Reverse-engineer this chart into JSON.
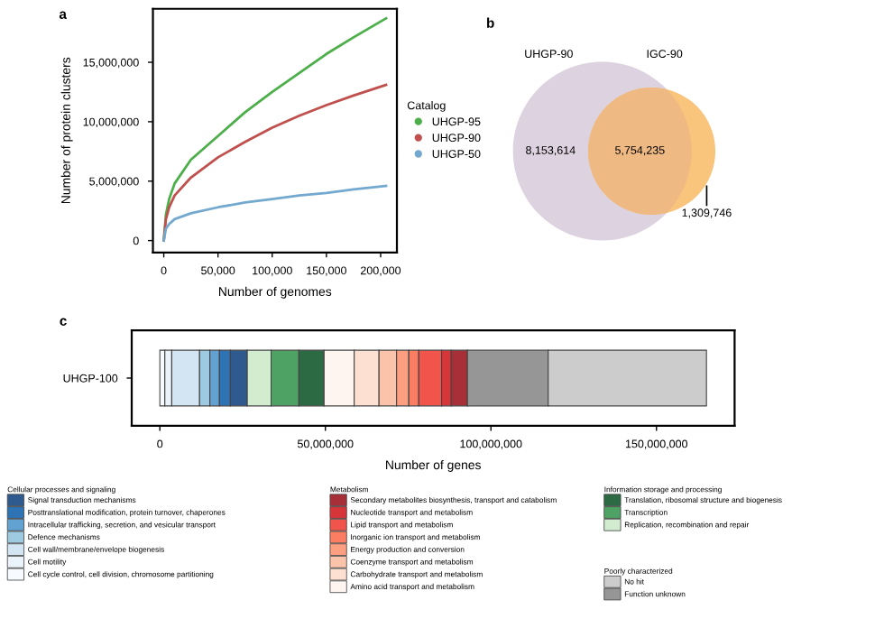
{
  "chart_data": [
    {
      "type": "line",
      "title": "a",
      "xlabel": "Number of genomes",
      "ylabel": "Number of protein clusters",
      "legend_title": "Catalog",
      "legend": "right",
      "x": [
        0,
        2000,
        5000,
        10000,
        25000,
        50000,
        75000,
        100000,
        125000,
        150000,
        175000,
        205000
      ],
      "xlim": [
        -10000,
        215000
      ],
      "ylim": [
        -1000000,
        19500000
      ],
      "xticks": [
        0,
        {
          "value": 50000,
          "label": "50,000"
        },
        {
          "value": 100000,
          "label": "100,000"
        },
        {
          "value": 150000,
          "label": "150,000"
        },
        {
          "value": 200000,
          "label": "200,000"
        }
      ],
      "yticks": [
        0,
        {
          "value": 5000000,
          "label": "5,000,000"
        },
        {
          "value": 10000000,
          "label": "10,000,000"
        },
        {
          "value": 15000000,
          "label": "15,000,000"
        }
      ],
      "series": [
        {
          "name": "UHGP-95",
          "color": "#4daf4a",
          "values": [
            0,
            2200000,
            3500000,
            4800000,
            6800000,
            8800000,
            10800000,
            12500000,
            14100000,
            15700000,
            17100000,
            18700000
          ]
        },
        {
          "name": "UHGP-90",
          "color": "#c0504d",
          "values": [
            0,
            1800000,
            2800000,
            3800000,
            5300000,
            7000000,
            8300000,
            9500000,
            10500000,
            11400000,
            12200000,
            13100000
          ]
        },
        {
          "name": "UHGP-50",
          "color": "#74a9cf",
          "values": [
            0,
            1000000,
            1400000,
            1800000,
            2300000,
            2800000,
            3200000,
            3500000,
            3800000,
            4000000,
            4300000,
            4600000
          ]
        }
      ]
    },
    {
      "type": "other",
      "title": "b",
      "values": [
        8153614,
        5754235,
        1309746
      ],
      "colors": [
        "#ddd3e0",
        "#efb983",
        "#f9c47c"
      ],
      "annotations": [
        "UHGP-90",
        "IGC-90"
      ],
      "value_labels": [
        "8,153,614",
        "5,754,235",
        "1,309,746"
      ]
    },
    {
      "type": "bar",
      "title": "c",
      "orientation": "horizontal",
      "stacked": true,
      "legend": "bottom",
      "xlabel": "Number of genes",
      "categories": [
        "UHGP-100"
      ],
      "xlim": [
        -8500000,
        173600000
      ],
      "xticks": [
        0,
        {
          "value": 50000000,
          "label": "50,000,000"
        },
        {
          "value": 100000000,
          "label": "100,000,000"
        },
        {
          "value": 150000000,
          "label": "150,000,000"
        }
      ],
      "annotations": [
        "Cellular processes and signaling",
        "Information storage and processing",
        "Metabolism",
        "Poorly characterized"
      ],
      "series": [
        {
          "name": "Cell cycle control, cell division, chromosome partitioning",
          "color": "#f7fbff",
          "values": [
            1500000
          ]
        },
        {
          "name": "Cell motility",
          "color": "#eaf2fa",
          "values": [
            2100000
          ]
        },
        {
          "name": "Cell wall/membrane/envelope biogenesis",
          "color": "#d3e4f3",
          "values": [
            8400000
          ]
        },
        {
          "name": "Defence mechanisms",
          "color": "#9ecae1",
          "values": [
            3100000
          ]
        },
        {
          "name": "Intracellular trafficking, secretion, and vesicular transport",
          "color": "#62a2d2",
          "values": [
            2900000
          ]
        },
        {
          "name": "Posttranslational modification, protein turnover, chaperones",
          "color": "#2e74b5",
          "values": [
            3300000
          ]
        },
        {
          "name": "Signal transduction mechanisms",
          "color": "#2f5a8f",
          "values": [
            5100000
          ]
        },
        {
          "name": "Replication, recombination and repair",
          "color": "#d2ecd0",
          "values": [
            7200000
          ]
        },
        {
          "name": "Transcription",
          "color": "#4ea264",
          "values": [
            8400000
          ]
        },
        {
          "name": "Translation, ribosomal structure and biogenesis",
          "color": "#2b6a43",
          "values": [
            7600000
          ]
        },
        {
          "name": "Amino acid transport and metabolism",
          "color": "#fff5f0",
          "values": [
            9100000
          ]
        },
        {
          "name": "Carbohydrate transport and metabolism",
          "color": "#fde0d2",
          "values": [
            7500000
          ]
        },
        {
          "name": "Coenzyme transport and metabolism",
          "color": "#fcc3ab",
          "values": [
            5300000
          ]
        },
        {
          "name": "Energy production and conversion",
          "color": "#fc9e80",
          "values": [
            3700000
          ]
        },
        {
          "name": "Inorganic ion transport and metabolism",
          "color": "#fb7e63",
          "values": [
            3000000
          ]
        },
        {
          "name": "Lipid transport and metabolism",
          "color": "#f0544a",
          "values": [
            6900000
          ]
        },
        {
          "name": "Nucleotide transport and metabolism",
          "color": "#d6363a",
          "values": [
            2900000
          ]
        },
        {
          "name": "Secondary metabolites biosynthesis, transport and catabolism",
          "color": "#a72f38",
          "values": [
            4900000
          ]
        },
        {
          "name": "Function unknown",
          "color": "#969696",
          "values": [
            24400000
          ]
        },
        {
          "name": "No hit",
          "color": "#cccccc",
          "values": [
            47800000
          ]
        }
      ]
    }
  ]
}
